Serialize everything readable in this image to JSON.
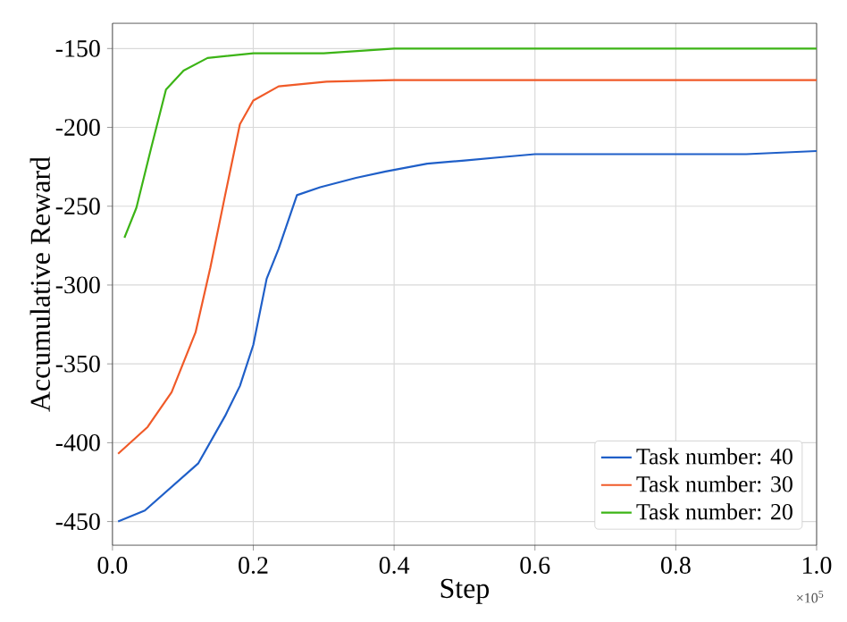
{
  "chart_data": {
    "type": "line",
    "xlabel": "Step",
    "ylabel": "Accumulative Reward",
    "xlim": [
      0,
      1.0
    ],
    "ylim": [
      -465,
      -134
    ],
    "xticks": [
      {
        "value": 0,
        "label": "0.0"
      },
      0.2,
      0.4,
      0.6,
      0.8,
      {
        "value": 1.0,
        "label": "1.0"
      }
    ],
    "yticks": [
      -450,
      -400,
      -350,
      -300,
      -250,
      -200,
      -150
    ],
    "grid": true,
    "legend": "bottom right",
    "line_style": "solid",
    "marker": "none",
    "annotations": [
      "×10$^{5}$"
    ],
    "series": [
      {
        "name": "Task number: 40",
        "color": "#1f5fc8",
        "x": [
          0.008,
          0.046,
          0.084,
          0.122,
          0.16,
          0.181,
          0.2,
          0.219,
          0.236,
          0.262,
          0.295,
          0.346,
          0.388,
          0.447,
          0.5,
          0.55,
          0.6,
          0.7,
          0.8,
          0.9,
          1.0
        ],
        "values": [
          -450,
          -443,
          -428,
          -413,
          -383,
          -364,
          -338,
          -296,
          -277,
          -243,
          -238,
          -232,
          -228,
          -223,
          -221,
          -219,
          -217,
          -217,
          -217,
          -217,
          -215
        ]
      },
      {
        "name": "Task number: 30",
        "color": "#f05a28",
        "x": [
          0.008,
          0.05,
          0.084,
          0.118,
          0.139,
          0.16,
          0.181,
          0.2,
          0.236,
          0.304,
          0.4,
          0.6,
          0.8,
          1.0
        ],
        "values": [
          -407,
          -390,
          -368,
          -330,
          -289,
          -243,
          -198,
          -183,
          -174,
          -171,
          -170,
          -170,
          -170,
          -170
        ]
      },
      {
        "name": "Task number: 20",
        "color": "#3cb416",
        "x": [
          0.017,
          0.034,
          0.055,
          0.076,
          0.101,
          0.135,
          0.2,
          0.3,
          0.4,
          0.6,
          0.8,
          1.0
        ],
        "values": [
          -270,
          -251,
          -213,
          -176,
          -164,
          -156,
          -153,
          -153,
          -150,
          -150,
          -150,
          -150
        ]
      }
    ]
  }
}
